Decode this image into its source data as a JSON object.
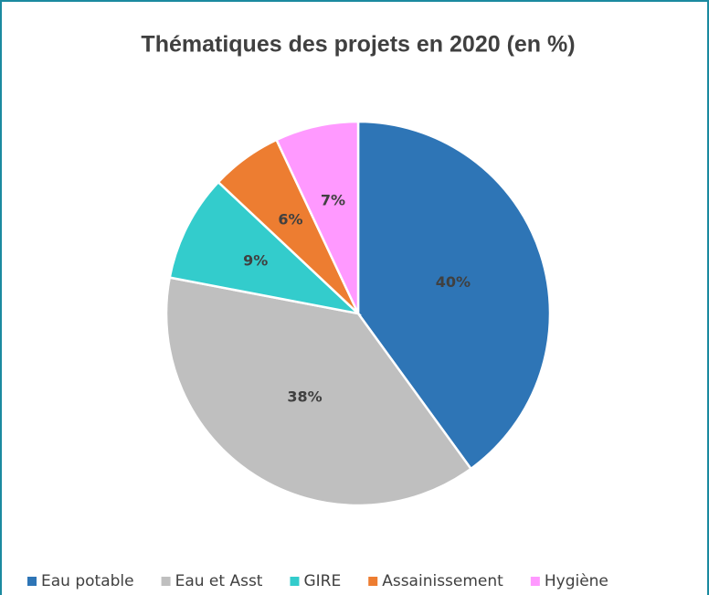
{
  "chart_data": {
    "type": "pie",
    "title": "Thématiques des projets en 2020 (en %)",
    "categories": [
      "Eau potable",
      "Eau et Asst",
      "GIRE",
      "Assainissement",
      "Hygiène"
    ],
    "values": [
      40,
      38,
      9,
      6,
      7
    ],
    "value_labels": [
      "40%",
      "38%",
      "9%",
      "6%",
      "7%"
    ],
    "colors": [
      "#2e75b6",
      "#bfbfbf",
      "#33cccc",
      "#ed7d31",
      "#ff99ff"
    ],
    "legend": "bottom"
  }
}
